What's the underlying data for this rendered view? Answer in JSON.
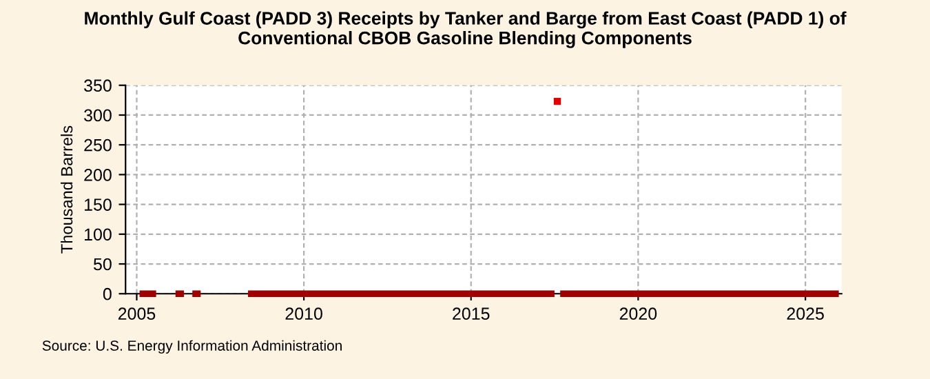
{
  "chart_data": {
    "type": "line",
    "title": "Monthly Gulf Coast (PADD 3) Receipts by Tanker and Barge from East Coast (PADD 1) of\nConventional CBOB Gasoline Blending Components",
    "ylabel": "Thousand Barrels",
    "annotations": [
      "Source: U.S. Energy Information Administration"
    ],
    "series": [
      {
        "color": "#a00000",
        "x": [
          "2005-02",
          "2005-08",
          "2005-09",
          "2006-03",
          "2006-06",
          "2006-07",
          "2006-09",
          "2006-12",
          "2007-01",
          "2008-05",
          "2017-07",
          "2017-08",
          "2017-09",
          "2026-01"
        ],
        "values": [
          0,
          0,
          null,
          0,
          0,
          null,
          0,
          0,
          null,
          0,
          0,
          null,
          0,
          0
        ]
      },
      {
        "type": "scatter",
        "color": "#e00000",
        "marker": "square",
        "x": [
          "2017-08"
        ],
        "values": [
          323
        ]
      }
    ],
    "xlim": [
      "2004-09",
      "2026-02"
    ],
    "xticks": [
      "2005",
      "2010",
      "2015",
      "2020",
      "2025"
    ],
    "ylim": [
      0,
      350
    ],
    "yticks": [
      0,
      50,
      100,
      150,
      200,
      250,
      300,
      350
    ],
    "grid": true
  }
}
